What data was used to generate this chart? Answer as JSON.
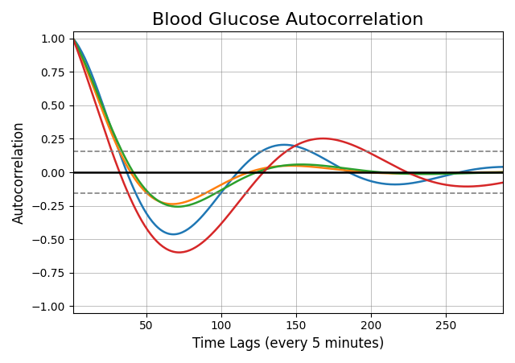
{
  "title": "Blood Glucose Autocorrelation",
  "xlabel": "Time Lags (every 5 minutes)",
  "ylabel": "Autocorrelation",
  "xlim": [
    1,
    288
  ],
  "ylim": [
    -1.05,
    1.05
  ],
  "yticks": [
    -1.0,
    -0.75,
    -0.5,
    -0.25,
    0.0,
    0.25,
    0.5,
    0.75,
    1.0
  ],
  "xticks": [
    50,
    100,
    150,
    200,
    250
  ],
  "confidence_band": 0.155,
  "colors": {
    "blue": "#1f77b4",
    "orange": "#ff7f0e",
    "green": "#2ca02c",
    "red": "#d62728"
  },
  "title_fontsize": 16,
  "label_fontsize": 12,
  "blue": {
    "decay": 0.012,
    "period": 145,
    "phase": 0.0
  },
  "orange": {
    "decay": 0.022,
    "period": 155,
    "phase": 0.0
  },
  "green": {
    "decay": 0.02,
    "period": 160,
    "phase": 0.0
  },
  "red": {
    "decay": 0.008,
    "period": 195,
    "phase": 0.55
  }
}
